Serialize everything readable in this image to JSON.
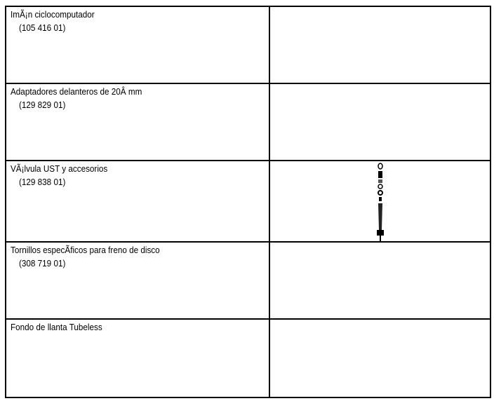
{
  "table": {
    "rows": [
      {
        "name": "ImÃ¡n ciclocomputador",
        "code": "(105 416 01)"
      },
      {
        "name": "Adaptadores delanteros de 20Â mm",
        "code": "(129 829 01)"
      },
      {
        "name": "VÃ¡lvula UST y accesorios",
        "code": "(129 838 01)"
      },
      {
        "name": "Tornillos especÃ­ficos para freno de disco",
        "code": "(308 719 01)"
      },
      {
        "name": "Fondo de llanta Tubeless"
      }
    ]
  }
}
